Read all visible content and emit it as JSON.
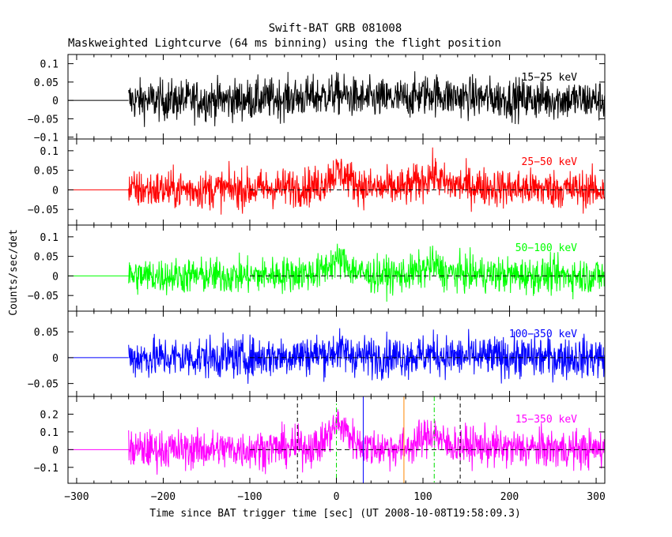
{
  "chart_data": {
    "type": "line",
    "title": "Swift-BAT GRB 081008",
    "subtitle": "Maskweighted Lightcurve (64 ms binning) using the flight position",
    "xlabel": "Time since BAT trigger time [sec] (UT 2008-10-08T19:58:09.3)",
    "ylabel": "Counts/sec/det",
    "xlim": [
      -310,
      310
    ],
    "xticks": [
      -300,
      -200,
      -100,
      0,
      100,
      200,
      300
    ],
    "xtick_labels": [
      "−300",
      "−200",
      "−100",
      "0",
      "100",
      "200",
      "300"
    ],
    "series": [
      {
        "name": "15−25 keV",
        "color": "#000000",
        "ylim": [
          -0.105,
          0.125
        ],
        "yticks": [
          -0.1,
          -0.05,
          0,
          0.05,
          0.1
        ],
        "ytick_labels": [
          "−0.1",
          "−0.05",
          "0",
          "0.05",
          "0.1"
        ],
        "noise": 0.028,
        "zero_line_from": null,
        "x": [
          -240,
          -100,
          -20,
          0,
          10,
          30,
          80,
          110,
          130,
          200,
          310
        ],
        "y": [
          0.0,
          0.002,
          0.01,
          0.018,
          0.012,
          0.003,
          0.005,
          0.02,
          0.01,
          0.005,
          0.0
        ]
      },
      {
        "name": "25−50 keV",
        "color": "#ff0000",
        "ylim": [
          -0.09,
          0.13
        ],
        "yticks": [
          -0.05,
          0,
          0.05,
          0.1
        ],
        "ytick_labels": [
          "−0.05",
          "0",
          "0.05",
          "0.1"
        ],
        "noise": 0.025,
        "zero_line_from": -100,
        "x": [
          -240,
          -100,
          -20,
          -5,
          5,
          20,
          35,
          80,
          100,
          112,
          125,
          200,
          310
        ],
        "y": [
          0.0,
          0.002,
          0.01,
          0.04,
          0.045,
          0.02,
          0.005,
          0.005,
          0.025,
          0.04,
          0.015,
          0.004,
          0.0
        ]
      },
      {
        "name": "50−100 keV",
        "color": "#00ff00",
        "ylim": [
          -0.09,
          0.13
        ],
        "yticks": [
          -0.05,
          0,
          0.05,
          0.1
        ],
        "ytick_labels": [
          "−0.05",
          "0",
          "0.05",
          "0.1"
        ],
        "noise": 0.023,
        "zero_line_from": -100,
        "x": [
          -240,
          -100,
          -20,
          -5,
          5,
          20,
          35,
          80,
          100,
          112,
          125,
          200,
          310
        ],
        "y": [
          0.0,
          0.0,
          0.008,
          0.035,
          0.04,
          0.015,
          0.002,
          0.003,
          0.015,
          0.03,
          0.008,
          0.002,
          0.0
        ]
      },
      {
        "name": "100−350 keV",
        "color": "#0000ff",
        "ylim": [
          -0.075,
          0.09
        ],
        "yticks": [
          -0.05,
          0,
          0.05
        ],
        "ytick_labels": [
          "−0.05",
          "0",
          "0.05"
        ],
        "noise": 0.02,
        "zero_line_from": -100,
        "x": [
          -240,
          -100,
          -10,
          0,
          10,
          30,
          100,
          110,
          130,
          310
        ],
        "y": [
          0.0,
          0.0,
          0.008,
          0.014,
          0.01,
          0.002,
          0.004,
          0.008,
          0.002,
          0.0
        ]
      },
      {
        "name": "15−350 keV",
        "color": "#ff00ff",
        "ylim": [
          -0.19,
          0.3
        ],
        "yticks": [
          -0.1,
          0,
          0.1,
          0.2
        ],
        "ytick_labels": [
          "−0.1",
          "0",
          "0.1",
          "0.2"
        ],
        "noise": 0.055,
        "zero_line_from": -100,
        "x": [
          -240,
          -100,
          -20,
          -8,
          2,
          12,
          25,
          40,
          80,
          100,
          112,
          125,
          200,
          310
        ],
        "y": [
          0.0,
          0.003,
          0.02,
          0.09,
          0.15,
          0.1,
          0.03,
          0.01,
          0.01,
          0.06,
          0.1,
          0.03,
          0.008,
          0.0
        ]
      }
    ],
    "pre_flat_until": -240,
    "markers": [
      {
        "x": -45,
        "color": "#000000",
        "style": "dashed"
      },
      {
        "x": 143,
        "color": "#000000",
        "style": "dashed"
      },
      {
        "x": 0,
        "color": "#00dd00",
        "style": "dashdot"
      },
      {
        "x": 113,
        "color": "#00dd00",
        "style": "dashdot"
      },
      {
        "x": 31,
        "color": "#0000ff",
        "style": "solid"
      },
      {
        "x": 78,
        "color": "#ff8800",
        "style": "solid"
      }
    ],
    "grid": false,
    "legend": "per-panel label, top-right"
  }
}
